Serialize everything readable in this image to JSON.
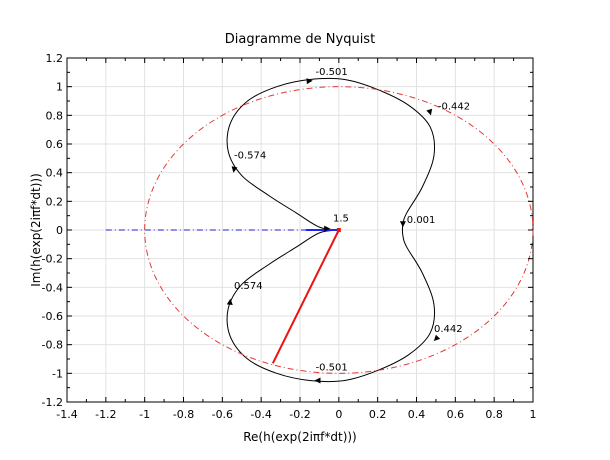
{
  "chart_data": {
    "type": "line",
    "title": "Diagramme de Nyquist",
    "xlabel": "Re(h(exp(2iπf*dt)))",
    "ylabel": "Im(h(exp(2iπf*dt)))",
    "xlim": [
      -1.4,
      1.0
    ],
    "ylim": [
      -1.2,
      1.2
    ],
    "grid": true,
    "xticks": [
      -1.4,
      -1.2,
      -1.0,
      -0.8,
      -0.6,
      -0.4,
      -0.2,
      0,
      0.2,
      0.4,
      0.6,
      0.8,
      1.0
    ],
    "xtick_labels": [
      "-1.4",
      "-1.2",
      "-1",
      "-0.8",
      "-0.6",
      "-0.4",
      "-0.2",
      "0",
      "0.2",
      "0.4",
      "0.6",
      "0.8",
      "1"
    ],
    "yticks": [
      -1.2,
      -1.0,
      -0.8,
      -0.6,
      -0.4,
      -0.2,
      0,
      0.2,
      0.4,
      0.6,
      0.8,
      1.0,
      1.2
    ],
    "ytick_labels": [
      "-1.2",
      "-1",
      "-0.8",
      "-0.6",
      "-0.4",
      "-0.2",
      "0",
      "0.2",
      "0.4",
      "0.6",
      "0.8",
      "1",
      "1.2"
    ],
    "series": [
      {
        "color": "#000000",
        "style": "solid",
        "points": [
          [
            0,
            0
          ],
          [
            -0.1,
            0.02
          ],
          [
            -0.22,
            0.12
          ],
          [
            -0.36,
            0.24
          ],
          [
            -0.5,
            0.38
          ],
          [
            -0.57,
            0.55
          ],
          [
            -0.56,
            0.74
          ],
          [
            -0.47,
            0.9
          ],
          [
            -0.32,
            1.0
          ],
          [
            -0.15,
            1.05
          ],
          [
            0.03,
            1.05
          ],
          [
            0.2,
            0.98
          ],
          [
            0.36,
            0.87
          ],
          [
            0.47,
            0.72
          ],
          [
            0.49,
            0.52
          ],
          [
            0.43,
            0.3
          ],
          [
            0.35,
            0.12
          ],
          [
            0.33,
            0.04
          ],
          [
            0.33,
            -0.04
          ],
          [
            0.35,
            -0.12
          ],
          [
            0.43,
            -0.3
          ],
          [
            0.49,
            -0.52
          ],
          [
            0.47,
            -0.72
          ],
          [
            0.36,
            -0.87
          ],
          [
            0.2,
            -0.98
          ],
          [
            0.03,
            -1.05
          ],
          [
            -0.15,
            -1.05
          ],
          [
            -0.32,
            -1.0
          ],
          [
            -0.47,
            -0.9
          ],
          [
            -0.56,
            -0.74
          ],
          [
            -0.57,
            -0.55
          ],
          [
            -0.5,
            -0.38
          ],
          [
            -0.36,
            -0.24
          ],
          [
            -0.22,
            -0.12
          ],
          [
            -0.1,
            -0.02
          ],
          [
            0,
            0
          ]
        ]
      },
      {
        "color": "#e03a3a",
        "style": "dash-dot",
        "points": "unit-circle"
      },
      {
        "color": "#2222cc",
        "style": "dash-dot",
        "points": [
          [
            -1.2,
            0
          ],
          [
            0,
            0
          ]
        ]
      },
      {
        "color": "#2222ff",
        "style": "solid",
        "points": [
          [
            -0.17,
            0.0
          ],
          [
            0.0,
            0.0
          ]
        ]
      },
      {
        "color": "#ee1111",
        "style": "solid",
        "points": [
          [
            0.0,
            0.0
          ],
          [
            -0.34,
            -0.93
          ]
        ]
      }
    ],
    "annotations": [
      {
        "text": "-0.501",
        "x": -0.12,
        "y": 1.08
      },
      {
        "text": "-0.442",
        "x": 0.51,
        "y": 0.84
      },
      {
        "text": "-0.574",
        "x": -0.54,
        "y": 0.5
      },
      {
        "text": "1.5",
        "x": -0.03,
        "y": 0.06
      },
      {
        "text": "0.001",
        "x": 0.35,
        "y": 0.05
      },
      {
        "text": "0.574",
        "x": -0.54,
        "y": -0.41
      },
      {
        "text": "0.442",
        "x": 0.49,
        "y": -0.71
      },
      {
        "text": "-0.501",
        "x": -0.12,
        "y": -0.98
      }
    ],
    "arrows": [
      {
        "x": -0.15,
        "y": 1.04,
        "dx": 1,
        "dy": 0.05
      },
      {
        "x": 0.47,
        "y": 0.82,
        "dx": 0.3,
        "dy": -1
      },
      {
        "x": -0.54,
        "y": 0.42,
        "dx": -0.2,
        "dy": -1
      },
      {
        "x": -0.06,
        "y": 0.01,
        "dx": 1,
        "dy": 0
      },
      {
        "x": 0.33,
        "y": 0.04,
        "dx": 0,
        "dy": -1
      },
      {
        "x": -0.56,
        "y": -0.5,
        "dx": 0.1,
        "dy": 1
      },
      {
        "x": 0.5,
        "y": -0.76,
        "dx": -1,
        "dy": -1
      },
      {
        "x": -0.11,
        "y": -1.05,
        "dx": -1,
        "dy": 0
      }
    ]
  }
}
